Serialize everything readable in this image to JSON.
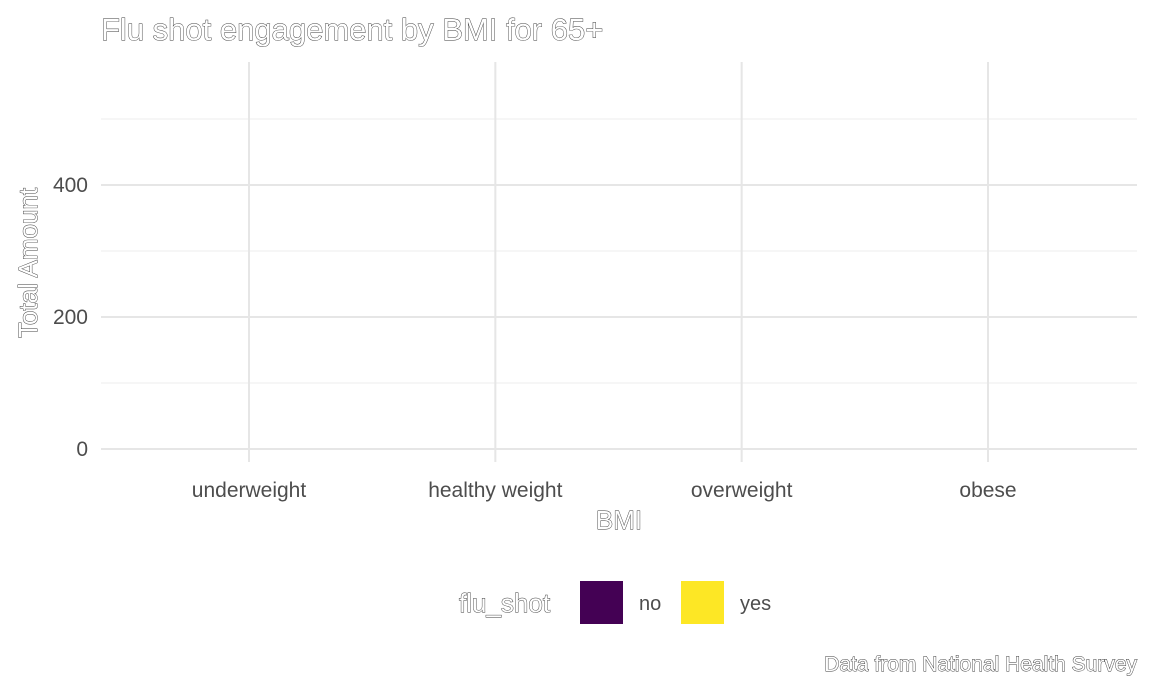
{
  "chart_data": {
    "type": "bar",
    "title": "Flu shot engagement by BMI for 65+",
    "xlabel": "BMI",
    "ylabel": "Total Amount",
    "caption": "Data from National Health Survey",
    "categories": [
      "underweight",
      "healthy weight",
      "overweight",
      "obese"
    ],
    "yticks": [
      0,
      200,
      400
    ],
    "ylim": [
      0,
      500
    ],
    "grid": true,
    "legend": {
      "title": "flu_shot",
      "position": "bottom",
      "entries": [
        {
          "label": "no",
          "color": "#440154"
        },
        {
          "label": "yes",
          "color": "#FDE725"
        }
      ]
    },
    "series": [
      {
        "name": "no",
        "color": "#440154",
        "values": [
          0,
          0,
          0,
          0
        ]
      },
      {
        "name": "yes",
        "color": "#FDE725",
        "values": [
          0,
          0,
          0,
          0
        ]
      }
    ]
  }
}
